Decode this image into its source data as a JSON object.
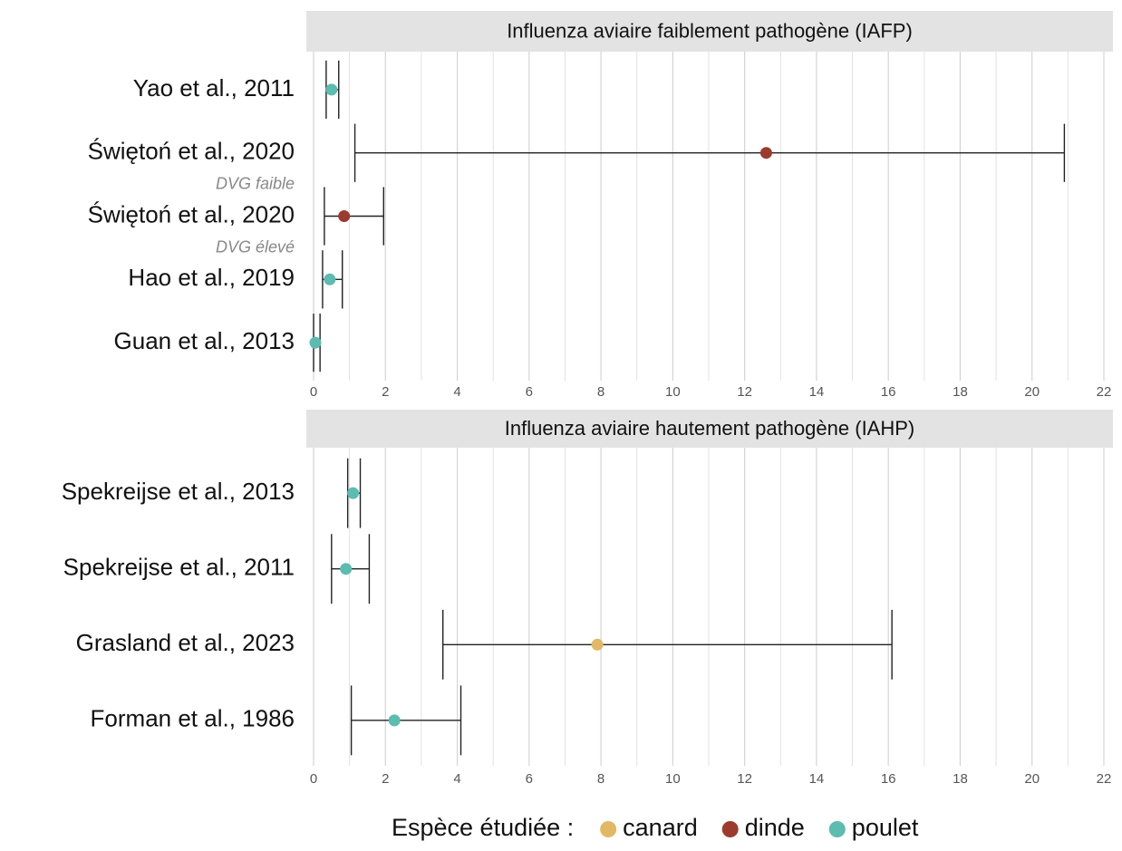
{
  "chart_data": [
    {
      "type": "errorbar",
      "title": "Influenza aviaire faiblement pathogène (IAFP)",
      "categories": [
        "Yao et al., 2011",
        "Świętoń et al., 2020",
        "Świętoń et al., 2020",
        "Hao et al., 2019",
        "Guan et al., 2013"
      ],
      "sublabels": [
        null,
        "DVG faible",
        "DVG élevé",
        null,
        null
      ],
      "values": [
        0.5,
        12.6,
        0.85,
        0.45,
        0.05
      ],
      "lower": [
        0.35,
        1.15,
        0.3,
        0.25,
        0
      ],
      "upper": [
        0.7,
        20.9,
        1.95,
        0.8,
        0.18
      ],
      "colors": [
        "#5bbcaf",
        "#9b3b2e",
        "#9b3b2e",
        "#5bbcaf",
        "#5bbcaf"
      ],
      "xlim": [
        0,
        22
      ],
      "xticks": [
        0,
        2,
        4,
        6,
        8,
        10,
        12,
        14,
        16,
        18,
        20,
        22
      ],
      "grid": true
    },
    {
      "type": "errorbar",
      "title": "Influenza aviaire hautement pathogène (IAHP)",
      "categories": [
        "Spekreijse et al., 2013",
        "Spekreijse et al., 2011",
        "Grasland et al., 2023",
        "Forman et al., 1986"
      ],
      "values": [
        1.1,
        0.9,
        7.9,
        2.25
      ],
      "lower": [
        0.95,
        0.5,
        3.6,
        1.05
      ],
      "upper": [
        1.3,
        1.55,
        16.1,
        4.1
      ],
      "colors": [
        "#5bbcaf",
        "#5bbcaf",
        "#e2b865",
        "#5bbcaf"
      ],
      "xlim": [
        0,
        22
      ],
      "xticks": [
        0,
        2,
        4,
        6,
        8,
        10,
        12,
        14,
        16,
        18,
        20,
        22
      ],
      "grid": true
    }
  ],
  "legend": {
    "title": "Espèce étudiée :",
    "entries": [
      {
        "name": "canard",
        "color": "#e2b865"
      },
      {
        "name": "dinde",
        "color": "#9b3b2e"
      },
      {
        "name": "poulet",
        "color": "#5bbcaf"
      }
    ]
  }
}
